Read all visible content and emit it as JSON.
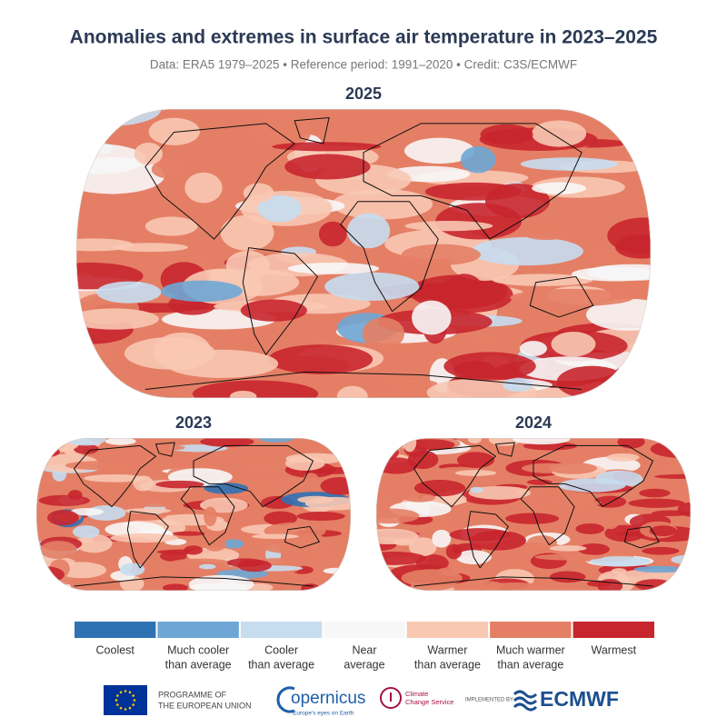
{
  "header": {
    "title": "Anomalies and extremes in surface air temperature in 2023–2025",
    "subtitle": "Data: ERA5 1979–2025 • Reference period: 1991–2020 • Credit: C3S/ECMWF"
  },
  "maps": [
    {
      "label": "2025"
    },
    {
      "label": "2023"
    },
    {
      "label": "2024"
    }
  ],
  "legend": {
    "items": [
      {
        "lines": [
          "Coolest"
        ],
        "color": "#2f72b4"
      },
      {
        "lines": [
          "Much cooler",
          "than average"
        ],
        "color": "#6ea7d5"
      },
      {
        "lines": [
          "Cooler",
          "than average"
        ],
        "color": "#c6ddef"
      },
      {
        "lines": [
          "Near",
          "average"
        ],
        "color": "#f7f7f7"
      },
      {
        "lines": [
          "Warmer",
          "than average"
        ],
        "color": "#f8c8b2"
      },
      {
        "lines": [
          "Much warmer",
          "than average"
        ],
        "color": "#e47f65"
      },
      {
        "lines": [
          "Warmest"
        ],
        "color": "#c8262e"
      }
    ]
  },
  "footer": {
    "eu": [
      "PROGRAMME OF",
      "THE EUROPEAN UNION"
    ],
    "copernicus": "opernicus",
    "copernicus_tagline": "Europe's eyes on Earth",
    "climate": [
      "Climate",
      "Change Service"
    ],
    "implemented": "IMPLEMENTED BY",
    "ecmwf": "ECMWF"
  }
}
